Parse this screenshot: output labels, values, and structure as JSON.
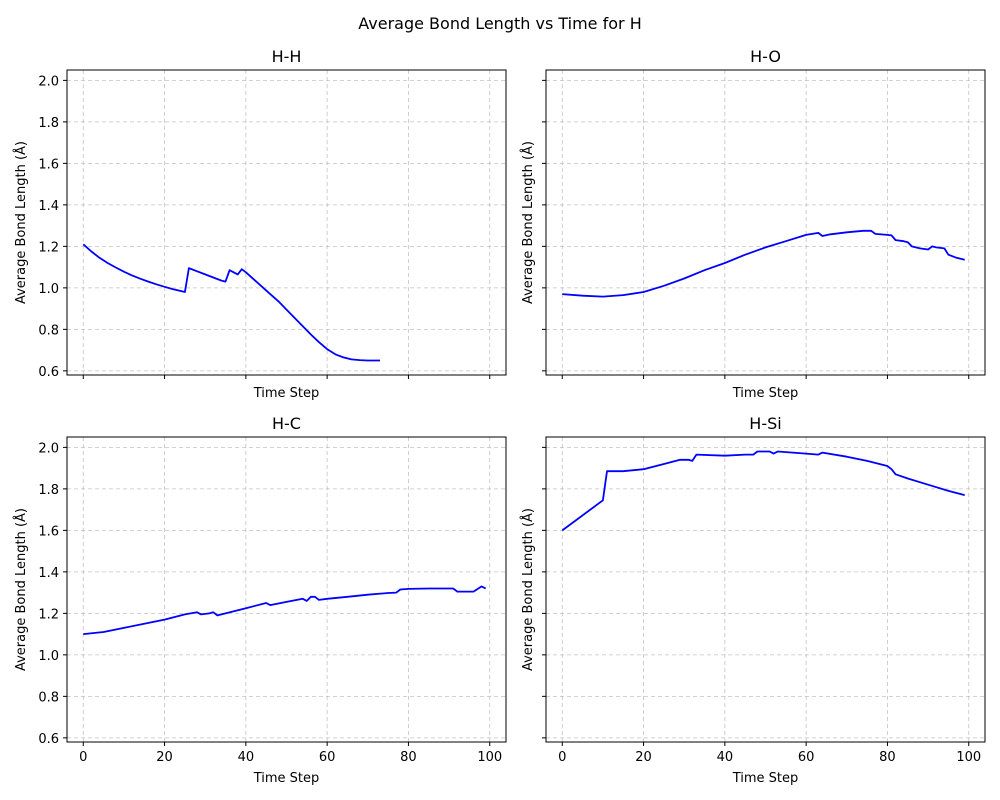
{
  "figure_title": "Average Bond Length vs Time for H",
  "chart_data": [
    {
      "type": "line",
      "title": "H-H",
      "xlabel": "Time Step",
      "ylabel": "Average Bond Length (Å)",
      "xlim": [
        -4,
        104
      ],
      "ylim": [
        0.58,
        2.05
      ],
      "xticks": [
        0,
        20,
        40,
        60,
        80,
        100
      ],
      "yticks": [
        0.6,
        0.8,
        1.0,
        1.2,
        1.4,
        1.6,
        1.8,
        2.0
      ],
      "ytick_labels": [
        "0.6",
        "0.8",
        "1.0",
        "1.2",
        "1.4",
        "1.6",
        "1.8",
        "2.0"
      ],
      "xtick_labels_visible": false,
      "ytick_labels_visible": true,
      "grid": true,
      "color": "#0000ff",
      "series": [
        {
          "x": [
            0,
            2,
            4,
            6,
            8,
            10,
            12,
            14,
            16,
            18,
            20,
            22,
            24,
            25,
            26,
            28,
            30,
            32,
            34,
            35,
            36,
            38,
            39,
            40,
            42,
            44,
            46,
            48,
            50,
            52,
            54,
            56,
            58,
            60,
            62,
            64,
            66,
            68,
            70,
            72,
            73
          ],
          "y": [
            1.21,
            1.175,
            1.145,
            1.12,
            1.098,
            1.078,
            1.06,
            1.044,
            1.03,
            1.017,
            1.005,
            0.994,
            0.985,
            0.98,
            1.095,
            1.08,
            1.065,
            1.05,
            1.035,
            1.03,
            1.085,
            1.065,
            1.09,
            1.075,
            1.04,
            1.005,
            0.97,
            0.935,
            0.895,
            0.855,
            0.815,
            0.775,
            0.738,
            0.705,
            0.68,
            0.665,
            0.655,
            0.652,
            0.65,
            0.65,
            0.65
          ]
        }
      ]
    },
    {
      "type": "line",
      "title": "H-O",
      "xlabel": "Time Step",
      "ylabel": "Average Bond Length (Å)",
      "xlim": [
        -4,
        104
      ],
      "ylim": [
        0.58,
        2.05
      ],
      "xticks": [
        0,
        20,
        40,
        60,
        80,
        100
      ],
      "yticks": [
        0.6,
        0.8,
        1.0,
        1.2,
        1.4,
        1.6,
        1.8,
        2.0
      ],
      "xtick_labels_visible": false,
      "ytick_labels_visible": false,
      "grid": true,
      "color": "#0000ff",
      "series": [
        {
          "x": [
            0,
            5,
            10,
            15,
            20,
            25,
            30,
            35,
            40,
            45,
            50,
            55,
            60,
            63,
            64,
            66,
            70,
            74,
            76,
            77,
            80,
            81,
            82,
            84,
            85,
            86,
            88,
            90,
            91,
            92,
            94,
            95,
            97,
            99
          ],
          "y": [
            0.97,
            0.962,
            0.958,
            0.965,
            0.98,
            1.01,
            1.045,
            1.085,
            1.12,
            1.16,
            1.195,
            1.225,
            1.255,
            1.265,
            1.25,
            1.258,
            1.268,
            1.275,
            1.275,
            1.26,
            1.255,
            1.253,
            1.23,
            1.225,
            1.22,
            1.2,
            1.19,
            1.185,
            1.2,
            1.195,
            1.19,
            1.16,
            1.145,
            1.135
          ]
        }
      ]
    },
    {
      "type": "line",
      "title": "H-C",
      "xlabel": "Time Step",
      "ylabel": "Average Bond Length (Å)",
      "xlim": [
        -4,
        104
      ],
      "ylim": [
        0.58,
        2.05
      ],
      "xticks": [
        0,
        20,
        40,
        60,
        80,
        100
      ],
      "xtick_labels": [
        "0",
        "20",
        "40",
        "60",
        "80",
        "100"
      ],
      "yticks": [
        0.6,
        0.8,
        1.0,
        1.2,
        1.4,
        1.6,
        1.8,
        2.0
      ],
      "ytick_labels": [
        "0.6",
        "0.8",
        "1.0",
        "1.2",
        "1.4",
        "1.6",
        "1.8",
        "2.0"
      ],
      "xtick_labels_visible": true,
      "ytick_labels_visible": true,
      "grid": true,
      "color": "#0000ff",
      "series": [
        {
          "x": [
            0,
            5,
            10,
            15,
            20,
            25,
            28,
            29,
            31,
            32,
            33,
            35,
            40,
            45,
            46,
            50,
            54,
            55,
            56,
            57,
            58,
            60,
            65,
            70,
            75,
            77,
            78,
            80,
            85,
            90,
            91,
            92,
            95,
            96,
            98,
            99
          ],
          "y": [
            1.1,
            1.11,
            1.13,
            1.15,
            1.17,
            1.195,
            1.205,
            1.195,
            1.2,
            1.205,
            1.19,
            1.2,
            1.225,
            1.25,
            1.24,
            1.255,
            1.27,
            1.26,
            1.28,
            1.28,
            1.265,
            1.27,
            1.28,
            1.29,
            1.298,
            1.3,
            1.315,
            1.318,
            1.32,
            1.32,
            1.32,
            1.305,
            1.305,
            1.305,
            1.33,
            1.32
          ]
        }
      ]
    },
    {
      "type": "line",
      "title": "H-Si",
      "xlabel": "Time Step",
      "ylabel": "Average Bond Length (Å)",
      "xlim": [
        -4,
        104
      ],
      "ylim": [
        0.58,
        2.05
      ],
      "xticks": [
        0,
        20,
        40,
        60,
        80,
        100
      ],
      "xtick_labels": [
        "0",
        "20",
        "40",
        "60",
        "80",
        "100"
      ],
      "yticks": [
        0.6,
        0.8,
        1.0,
        1.2,
        1.4,
        1.6,
        1.8,
        2.0
      ],
      "xtick_labels_visible": true,
      "ytick_labels_visible": false,
      "grid": true,
      "color": "#0000ff",
      "series": [
        {
          "x": [
            0,
            10,
            11,
            15,
            20,
            25,
            29,
            31,
            32,
            33,
            40,
            45,
            47,
            48,
            51,
            52,
            53,
            60,
            63,
            64,
            70,
            75,
            80,
            81,
            82,
            85,
            90,
            95,
            99
          ],
          "y": [
            1.6,
            1.745,
            1.885,
            1.885,
            1.895,
            1.92,
            1.94,
            1.94,
            1.935,
            1.965,
            1.96,
            1.965,
            1.965,
            1.98,
            1.98,
            1.97,
            1.98,
            1.97,
            1.965,
            1.975,
            1.955,
            1.935,
            1.91,
            1.895,
            1.87,
            1.85,
            1.82,
            1.79,
            1.77
          ]
        }
      ]
    }
  ]
}
